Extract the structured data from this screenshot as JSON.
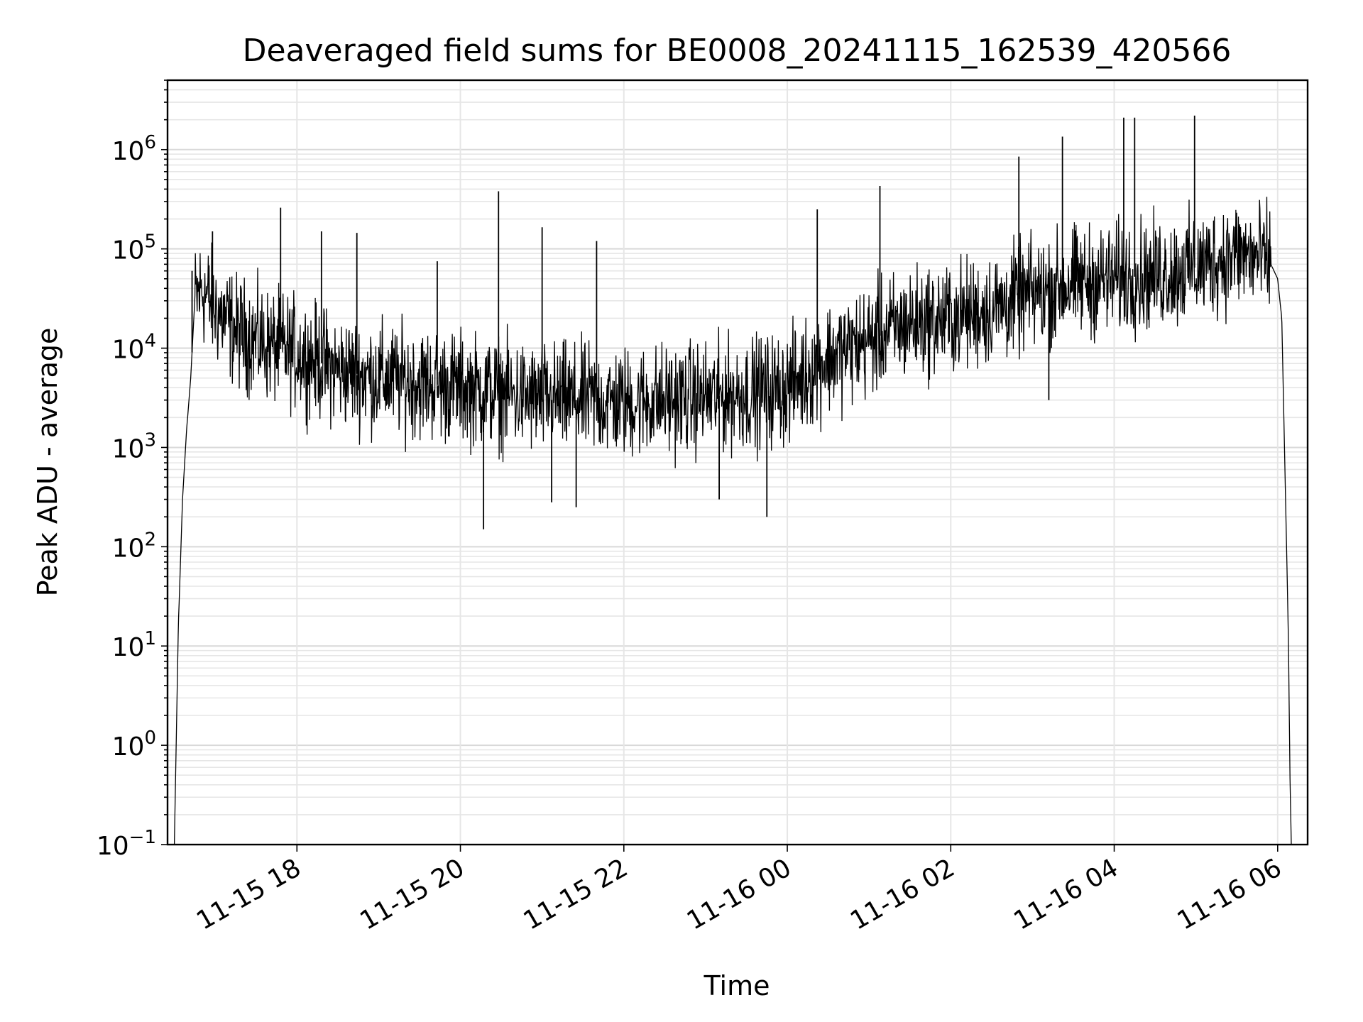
{
  "chart_data": {
    "type": "line",
    "title": "Deaveraged field sums for BE0008_20241115_162539_420566",
    "xlabel": "Time",
    "ylabel": "Peak ADU - average",
    "y_scale": "log",
    "ylim": [
      0.1,
      5000000
    ],
    "xlim": [
      "2024-11-15 16:25",
      "2024-11-16 06:22"
    ],
    "grid": true,
    "x_ticks": [
      {
        "value": "2024-11-15 18:00",
        "label": "11-15 18"
      },
      {
        "value": "2024-11-15 20:00",
        "label": "11-15 20"
      },
      {
        "value": "2024-11-15 22:00",
        "label": "11-15 22"
      },
      {
        "value": "2024-11-16 00:00",
        "label": "11-16 00"
      },
      {
        "value": "2024-11-16 02:00",
        "label": "11-16 02"
      },
      {
        "value": "2024-11-16 04:00",
        "label": "11-16 04"
      },
      {
        "value": "2024-11-16 06:00",
        "label": "11-16 06"
      }
    ],
    "y_ticks": [
      {
        "value": 0.1,
        "base": "10",
        "exp": "−1"
      },
      {
        "value": 1,
        "base": "10",
        "exp": "0"
      },
      {
        "value": 10,
        "base": "10",
        "exp": "1"
      },
      {
        "value": 100,
        "base": "10",
        "exp": "2"
      },
      {
        "value": 1000,
        "base": "10",
        "exp": "3"
      },
      {
        "value": 10000,
        "base": "10",
        "exp": "4"
      },
      {
        "value": 100000,
        "base": "10",
        "exp": "5"
      },
      {
        "value": 1000000,
        "base": "10",
        "exp": "6"
      }
    ],
    "series": [
      {
        "color": "#000000",
        "x": [
          "2024-11-15 16:30",
          "2024-11-15 16:33",
          "2024-11-15 16:36",
          "2024-11-15 16:39",
          "2024-11-15 16:42",
          "2024-11-15 16:45",
          "2024-11-15 16:50",
          "2024-11-15 17:00",
          "2024-11-15 17:15",
          "2024-11-15 17:30",
          "2024-11-15 17:45",
          "2024-11-15 18:00",
          "2024-11-15 18:30",
          "2024-11-15 19:00",
          "2024-11-15 19:30",
          "2024-11-15 20:00",
          "2024-11-15 20:30",
          "2024-11-15 21:00",
          "2024-11-15 21:30",
          "2024-11-15 22:00",
          "2024-11-15 22:30",
          "2024-11-15 23:00",
          "2024-11-15 23:30",
          "2024-11-16 00:00",
          "2024-11-16 00:30",
          "2024-11-16 01:00",
          "2024-11-16 01:30",
          "2024-11-16 02:00",
          "2024-11-16 02:30",
          "2024-11-16 03:00",
          "2024-11-16 03:30",
          "2024-11-16 04:00",
          "2024-11-16 04:30",
          "2024-11-16 05:00",
          "2024-11-16 05:30",
          "2024-11-16 05:45",
          "2024-11-16 05:55",
          "2024-11-16 06:00",
          "2024-11-16 06:03",
          "2024-11-16 06:05",
          "2024-11-16 06:07",
          "2024-11-16 06:08",
          "2024-11-16 06:09",
          "2024-11-16 06:10"
        ],
        "y": [
          0.1,
          17,
          300,
          1500,
          5000,
          30000,
          40000,
          25000,
          15000,
          12000,
          10000,
          9000,
          6000,
          5000,
          4500,
          4000,
          3500,
          3000,
          3000,
          2800,
          3000,
          3200,
          3500,
          4000,
          8000,
          12000,
          18000,
          20000,
          25000,
          35000,
          45000,
          50000,
          55000,
          65000,
          90000,
          80000,
          70000,
          50000,
          20000,
          1000,
          50,
          10,
          0.5,
          0.1
        ],
        "spikes": [
          {
            "x": "2024-11-15 16:43",
            "y": 60000
          },
          {
            "x": "2024-11-15 16:58",
            "y": 150000
          },
          {
            "x": "2024-11-15 17:48",
            "y": 260000
          },
          {
            "x": "2024-11-15 18:18",
            "y": 150000
          },
          {
            "x": "2024-11-15 18:44",
            "y": 145000
          },
          {
            "x": "2024-11-15 19:43",
            "y": 75000
          },
          {
            "x": "2024-11-15 20:28",
            "y": 380000
          },
          {
            "x": "2024-11-15 21:00",
            "y": 165000
          },
          {
            "x": "2024-11-15 21:40",
            "y": 120000
          },
          {
            "x": "2024-11-16 00:22",
            "y": 250000
          },
          {
            "x": "2024-11-16 01:08",
            "y": 430000
          },
          {
            "x": "2024-11-16 02:50",
            "y": 850000
          },
          {
            "x": "2024-11-16 03:22",
            "y": 1350000
          },
          {
            "x": "2024-11-16 04:07",
            "y": 2100000
          },
          {
            "x": "2024-11-16 04:15",
            "y": 2100000
          },
          {
            "x": "2024-11-16 04:59",
            "y": 2200000
          }
        ],
        "dips": [
          {
            "x": "2024-11-15 20:17",
            "y": 150
          },
          {
            "x": "2024-11-15 21:07",
            "y": 280
          },
          {
            "x": "2024-11-15 21:25",
            "y": 250
          },
          {
            "x": "2024-11-15 23:10",
            "y": 300
          },
          {
            "x": "2024-11-15 23:45",
            "y": 200
          },
          {
            "x": "2024-11-16 03:12",
            "y": 3000
          }
        ]
      }
    ]
  }
}
